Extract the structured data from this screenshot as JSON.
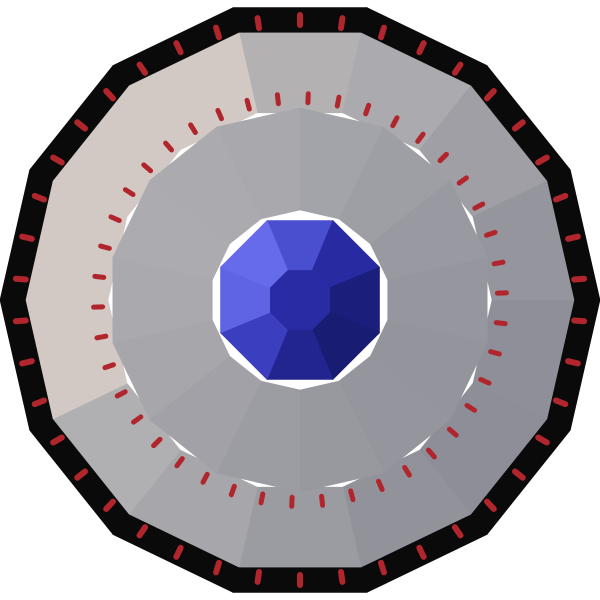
{
  "scene": {
    "object": "faceted-shield",
    "background_color": "#ffffff",
    "outer_ring": {
      "sides": 14,
      "base_color": "#a9a9ad",
      "light_color": "#d8cdc7",
      "dark_color": "#6f7080",
      "marker_count": 42
    },
    "inner_ring": {
      "sides": 14,
      "base_color": "#9fa0a6",
      "marker_count": 42
    },
    "center_gem": {
      "sides": 8,
      "base_color": "#2b2fb0",
      "light_color": "#6a6ff0",
      "dark_color": "#141660",
      "icon": "sapphire-gem-icon"
    },
    "marker_color": "#b0262c"
  }
}
